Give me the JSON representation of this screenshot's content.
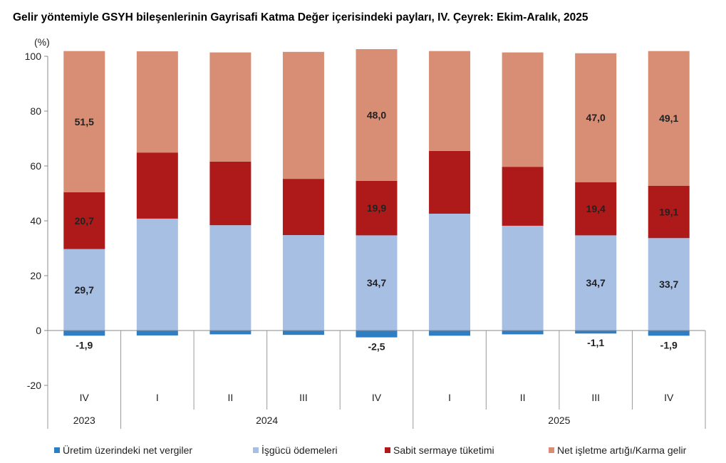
{
  "chart_data": {
    "type": "bar",
    "stacked": true,
    "title": "Gelir yöntemiyle GSYH bileşenlerinin Gayrisafi Katma Değer içerisindeki payları, IV. Çeyrek: Ekim-Aralık, 2025",
    "ylabel": "(%)",
    "ylim": [
      -20,
      100
    ],
    "yticks": [
      -20,
      0,
      20,
      40,
      60,
      80,
      100
    ],
    "categories": [
      "IV",
      "I",
      "II",
      "III",
      "IV",
      "I",
      "II",
      "III",
      "IV"
    ],
    "years": [
      {
        "label": "2023",
        "span": 1
      },
      {
        "label": "2024",
        "span": 4
      },
      {
        "label": "2025",
        "span": 4
      }
    ],
    "legend_position": "bottom",
    "grid": false,
    "series": [
      {
        "name": "Üretim üzerindeki net vergiler",
        "color": "#2f7dc2",
        "values": [
          -1.9,
          -1.8,
          -1.4,
          -1.6,
          -2.5,
          -1.9,
          -1.4,
          -1.1,
          -1.9
        ],
        "labels": [
          "-1,9",
          "",
          "",
          "",
          "-2,5",
          "",
          "",
          "-1,1",
          "-1,9"
        ]
      },
      {
        "name": "İşgücü ödemeleri",
        "color": "#a7bfe2",
        "values": [
          29.7,
          40.8,
          38.4,
          34.8,
          34.7,
          42.6,
          38.2,
          34.7,
          33.7
        ],
        "labels": [
          "29,7",
          "",
          "",
          "",
          "34,7",
          "",
          "",
          "34,7",
          "33,7"
        ]
      },
      {
        "name": "Sabit sermaye tüketimi",
        "color": "#ae1a1a",
        "values": [
          20.7,
          24.1,
          23.2,
          20.5,
          19.9,
          22.9,
          21.5,
          19.4,
          19.1
        ],
        "labels": [
          "20,7",
          "",
          "",
          "",
          "19,9",
          "",
          "",
          "19,4",
          "19,1"
        ]
      },
      {
        "name": "Net işletme artığı/Karma gelir",
        "color": "#d88d75",
        "values": [
          51.5,
          36.9,
          39.8,
          46.3,
          48.0,
          36.4,
          41.7,
          47.0,
          49.1
        ],
        "labels": [
          "51,5",
          "",
          "",
          "",
          "48,0",
          "",
          "",
          "47,0",
          "49,1"
        ]
      }
    ]
  }
}
